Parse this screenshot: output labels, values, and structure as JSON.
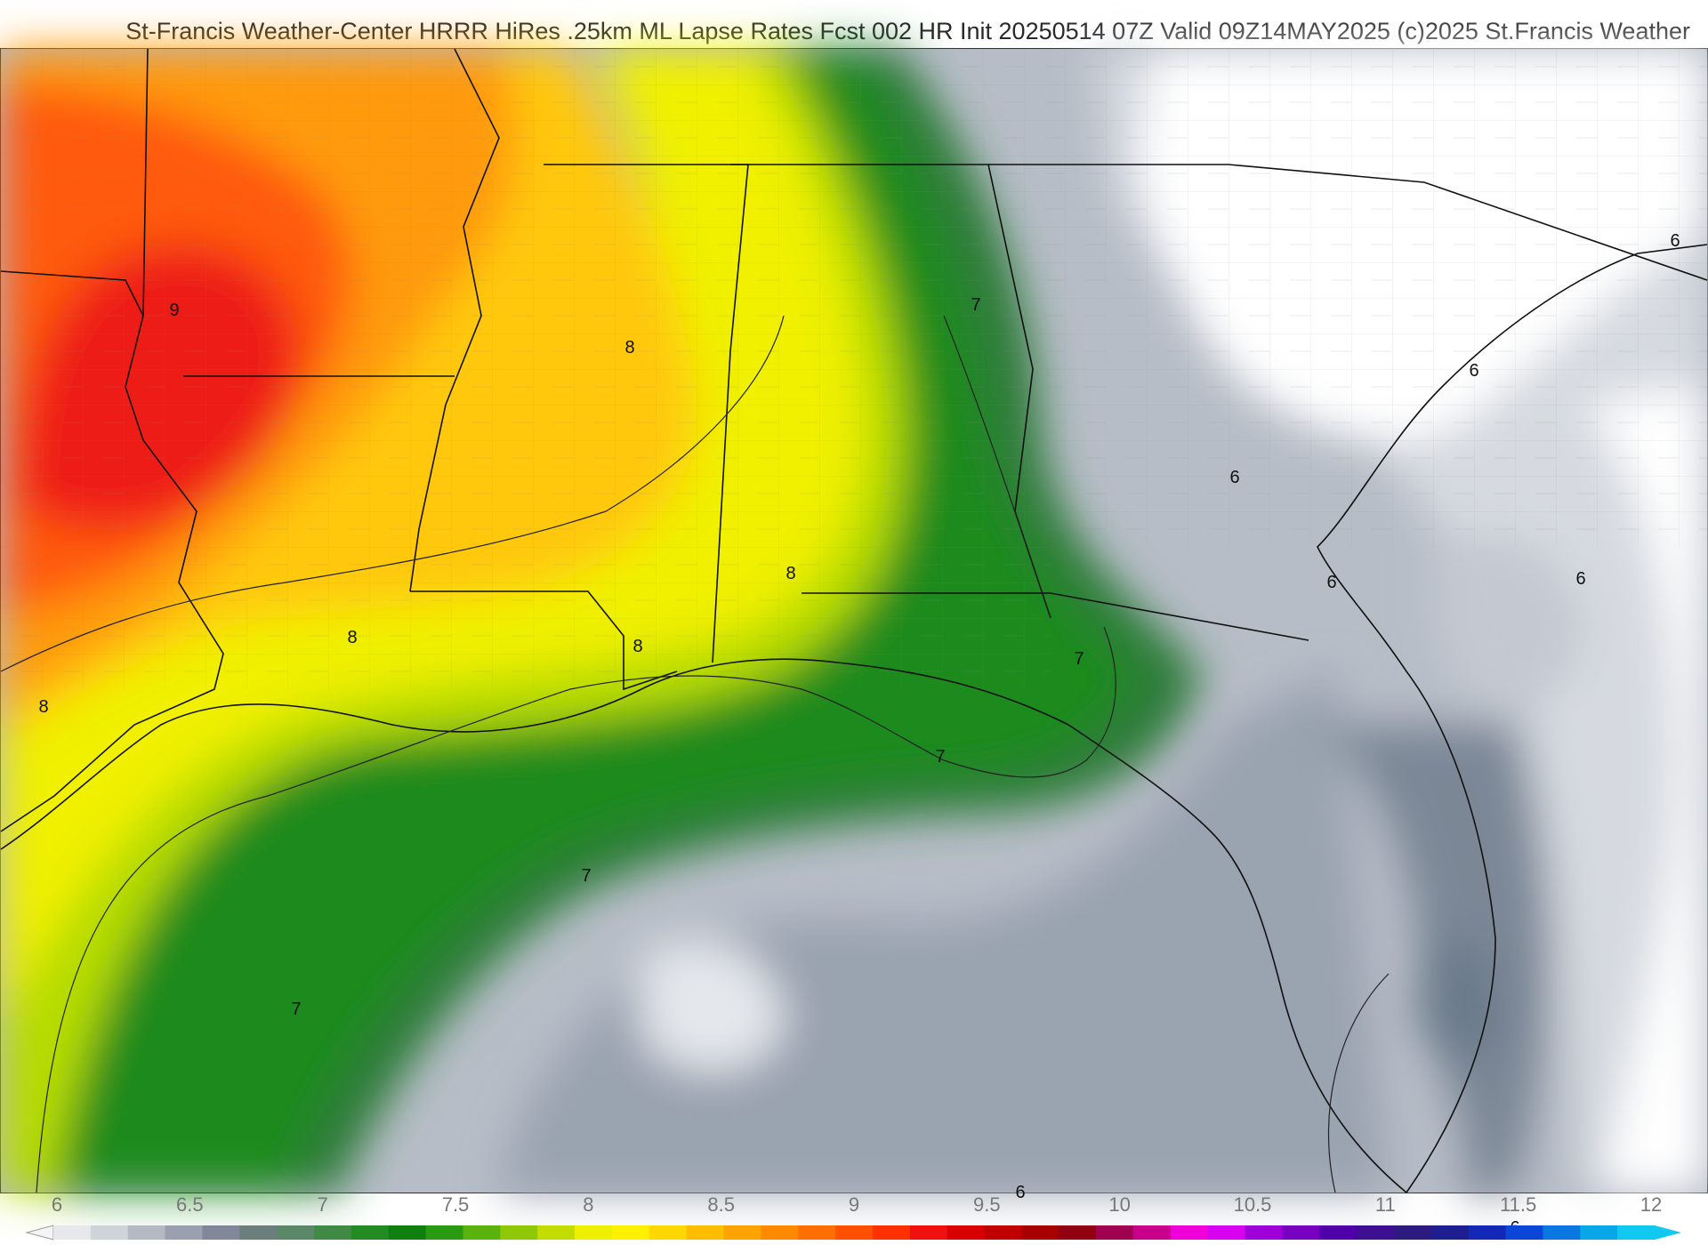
{
  "header": {
    "title": "St-Francis Weather-Center HRRR HiRes .25km ML Lapse Rates  Fcst 002 HR Init 20250514 07Z  Valid 09Z14MAY2025    (c)2025 St.Francis Weather"
  },
  "colorbar": {
    "ticks": [
      "6",
      "6.5",
      "7",
      "7.5",
      "8",
      "8.5",
      "9",
      "9.5",
      "10",
      "10.5",
      "11",
      "11.5",
      "12"
    ],
    "colors": [
      "#e6e8ec",
      "#cfd3da",
      "#b4b9c4",
      "#9aa0ae",
      "#808899",
      "#6a7f7c",
      "#5a8868",
      "#3f8a45",
      "#228b22",
      "#0f800f",
      "#2a9a10",
      "#5ab20c",
      "#8ec806",
      "#c2dc00",
      "#eef000",
      "#fff000",
      "#ffd800",
      "#ffbd00",
      "#ffa300",
      "#ff8a00",
      "#ff6e00",
      "#ff5000",
      "#ff3000",
      "#f01010",
      "#d80000",
      "#c00000",
      "#a80000",
      "#900010",
      "#a00050",
      "#c8008c",
      "#f000d8",
      "#d800f0",
      "#a000d8",
      "#7800c0",
      "#5000a8",
      "#3c1090",
      "#2c1a80",
      "#1e1e90",
      "#1428b8",
      "#0c46d8",
      "#0a78e0",
      "#08a8e8",
      "#10c8f0"
    ]
  },
  "map": {
    "contour_labels": [
      "9",
      "8",
      "8",
      "8",
      "8",
      "8",
      "7",
      "7",
      "7",
      "7",
      "7",
      "6",
      "6",
      "6",
      "6",
      "6",
      "6",
      "6"
    ],
    "colors": {
      "red": "#ee1c16",
      "orange_red": "#ff5a10",
      "orange": "#ff9a10",
      "yellow_orange": "#ffc810",
      "yellow": "#f0f000",
      "lime": "#b6dc00",
      "green": "#1a8a1a",
      "dark_green": "#2d6e3e",
      "slate": "#6b7a8a",
      "gray": "#9aa3b0",
      "light_gray": "#c9ced6",
      "white": "#ffffff"
    }
  }
}
